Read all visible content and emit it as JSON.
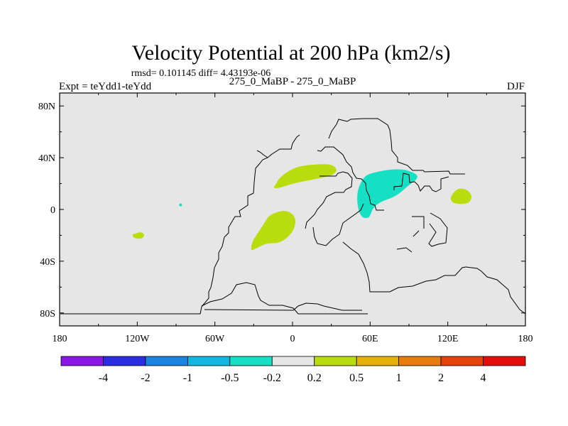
{
  "chart_data": {
    "type": "map-contour",
    "title": "Velocity Potential at 200 hPa (km2/s)",
    "stats": "rmsd= 0.101145 diff= 4.43193e-06",
    "subtitle_left": "Expt = teYdd1-teYdd",
    "subtitle_center": "275_0_MaBP - 275_0_MaBP",
    "subtitle_right": "DJF",
    "xlim": [
      -180,
      180
    ],
    "ylim": [
      -90,
      90
    ],
    "x_ticks": [
      {
        "value": -180,
        "label": "180"
      },
      {
        "value": -120,
        "label": "120W"
      },
      {
        "value": -60,
        "label": "60W"
      },
      {
        "value": 0,
        "label": "0"
      },
      {
        "value": 60,
        "label": "60E"
      },
      {
        "value": 120,
        "label": "120E"
      },
      {
        "value": 180,
        "label": "180"
      }
    ],
    "y_ticks": [
      {
        "value": 80,
        "label": "80N"
      },
      {
        "value": 40,
        "label": "40N"
      },
      {
        "value": 0,
        "label": "0"
      },
      {
        "value": -40,
        "label": "40S"
      },
      {
        "value": -80,
        "label": "80S"
      }
    ],
    "colorbar": {
      "colors": [
        "#8c16e6",
        "#2c2ce0",
        "#1a84e0",
        "#10b8e0",
        "#16e0c4",
        "#e6e6e6",
        "#b8dc0c",
        "#e6b00c",
        "#e67c0c",
        "#e6400c",
        "#e60c0c"
      ],
      "labels": [
        "-4",
        "-2",
        "-1",
        "-0.5",
        "-0.2",
        "0.2",
        "0.5",
        "1",
        "2",
        "4"
      ]
    },
    "background_color": "#e6e6e6",
    "anomalies": [
      {
        "name": "north-africa-positive",
        "level": 0.2,
        "color": "#b8dc0c",
        "lon": [
          -13,
          -10,
          2,
          18,
          31,
          35,
          30,
          15,
          0,
          -12,
          -15
        ],
        "lat": [
          19,
          25,
          33,
          35,
          35,
          30,
          26,
          23,
          20,
          16,
          17
        ]
      },
      {
        "name": "south-atlantic-positive",
        "level": 0.2,
        "color": "#b8dc0c",
        "lon": [
          -28,
          -20,
          -9,
          1,
          3,
          -5,
          -18,
          -22,
          -28,
          -30,
          -32,
          -32
        ],
        "lat": [
          -30,
          -26,
          -26,
          -17,
          -6,
          0,
          -4,
          -11,
          -20,
          -23,
          -28,
          -32
        ]
      },
      {
        "name": "south-pacific-positive",
        "level": 0.2,
        "color": "#b8dc0c",
        "lon": [
          -122,
          -117,
          -114,
          -117,
          -123,
          -124
        ],
        "lat": [
          -19,
          -17,
          -20,
          -23,
          -22,
          -19
        ]
      },
      {
        "name": "west-pacific-positive",
        "level": 0.2,
        "color": "#b8dc0c",
        "lon": [
          123,
          127,
          134,
          139,
          137,
          130,
          124,
          122
        ],
        "lat": [
          11,
          16,
          16,
          11,
          5,
          4,
          5,
          8
        ]
      },
      {
        "name": "asia-negative",
        "level": -0.2,
        "color": "#16e0c4",
        "lon": [
          55,
          60,
          75,
          87,
          97,
          96,
          90,
          80,
          68,
          62,
          60,
          58,
          53,
          50,
          50
        ],
        "lat": [
          25,
          28,
          31,
          31,
          27,
          23,
          19,
          10,
          6,
          1,
          -5,
          -7,
          -6,
          3,
          15
        ]
      },
      {
        "name": "south-america-negative",
        "level": -0.2,
        "color": "#16e0c4",
        "lon": [
          -87,
          -85,
          -86,
          -88
        ],
        "lat": [
          2,
          3,
          5,
          4
        ]
      }
    ]
  }
}
